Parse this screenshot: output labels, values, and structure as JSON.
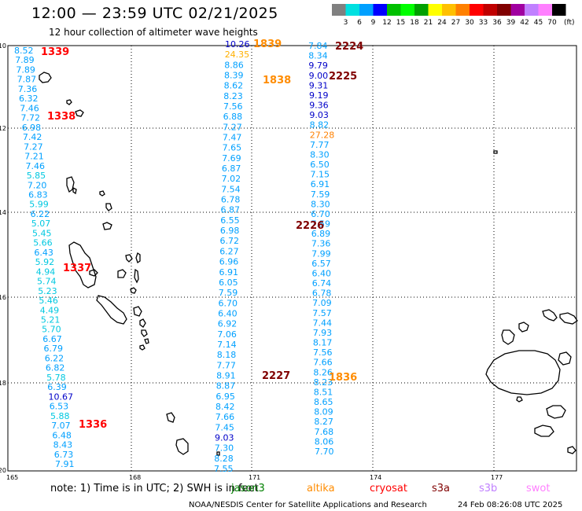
{
  "header": {
    "title": "12:00 — 23:59 UTC 02/21/2025",
    "subtitle": "12 hour collection of altimeter wave heights"
  },
  "colorbar": {
    "ticks": [
      "3",
      "6",
      "9",
      "12",
      "15",
      "18",
      "21",
      "24",
      "27",
      "30",
      "33",
      "36",
      "39",
      "42",
      "45",
      "70"
    ],
    "unit": "(ft)",
    "colors": [
      "#808080",
      "#00e0e0",
      "#00a0ff",
      "#0000ff",
      "#00c000",
      "#00ff00",
      "#00a000",
      "#ffff00",
      "#ffc000",
      "#ff8000",
      "#ff0000",
      "#c00000",
      "#800000",
      "#a000a0",
      "#c080ff",
      "#ff80ff",
      "#000000"
    ]
  },
  "axes": {
    "lat_labels": [
      "-10",
      "-12",
      "-14",
      "-16",
      "-18",
      "-20"
    ],
    "lon_labels": [
      "165",
      "168",
      "171",
      "174",
      "177"
    ]
  },
  "passes": [
    {
      "id": "1339",
      "color": "#ff0000"
    },
    {
      "id": "1338",
      "color": "#ff0000"
    },
    {
      "id": "1337",
      "color": "#ff0000"
    },
    {
      "id": "1336",
      "color": "#ff0000"
    },
    {
      "id": "1839",
      "color": "#ff8c00"
    },
    {
      "id": "1838",
      "color": "#ff8c00"
    },
    {
      "id": "1836",
      "color": "#ff8c00"
    },
    {
      "id": "2224",
      "color": "#800000"
    },
    {
      "id": "2225",
      "color": "#800000"
    },
    {
      "id": "2226",
      "color": "#800000"
    },
    {
      "id": "2227",
      "color": "#800000"
    }
  ],
  "tracks": {
    "west": [
      "8.52",
      "7.89",
      "7.89",
      "7.87",
      "7.36",
      "6.32",
      "7.46",
      "7.72",
      "6.98",
      "7.42",
      "7.27",
      "7.21",
      "7.46",
      "5.85",
      "7.20",
      "6.83",
      "5.99",
      "6.22",
      "5.07",
      "5.45",
      "5.66",
      "6.43",
      "5.92",
      "4.94",
      "5.74",
      "5.23",
      "5.46",
      "4.49",
      "5.21",
      "5.70",
      "6.67",
      "6.79",
      "6.22",
      "6.82",
      "5.78",
      "6.39",
      "10.67",
      "6.53",
      "5.88",
      "7.07",
      "6.48",
      "8.43",
      "6.73",
      "7.91"
    ],
    "middle_top": [
      "10.26",
      "24.35",
      "8.86",
      "8.39",
      "8.62",
      "8.23",
      "7.56",
      "6.88",
      "7.27",
      "7.47",
      "7.65",
      "7.69",
      "6.87",
      "7.02",
      "7.54",
      "6.78",
      "6.87",
      "6.55",
      "6.98",
      "6.72",
      "6.27",
      "6.96",
      "6.91",
      "6.05",
      "7.59",
      "6.70",
      "6.40",
      "6.92",
      "7.06",
      "7.14",
      "8.18",
      "7.77",
      "8.91",
      "8.87",
      "6.95",
      "8.42",
      "7.66",
      "7.45",
      "9.03",
      "7.30",
      "8.28",
      "7.55"
    ],
    "east": [
      "7.84",
      "8.34",
      "9.79",
      "9.00",
      "9.31",
      "9.19",
      "9.36",
      "9.03",
      "8.82",
      "27.28",
      "7.77",
      "8.30",
      "6.50",
      "7.15",
      "6.91",
      "7.59",
      "8.30",
      "6.70",
      "7.59",
      "6.89",
      "7.36",
      "7.99",
      "6.57",
      "6.40",
      "6.74",
      "6.78",
      "7.09",
      "7.57",
      "7.44",
      "7.93",
      "8.17",
      "7.56",
      "7.66",
      "8.26",
      "8.23",
      "8.51",
      "8.65",
      "8.09",
      "8.27",
      "7.68",
      "8.06",
      "7.70"
    ]
  },
  "footer": {
    "note": "note:  1) Time is in UTC;  2) SWH is in feet",
    "missions": [
      {
        "name": "jason3",
        "color": "#008000"
      },
      {
        "name": "altika",
        "color": "#ff8c00"
      },
      {
        "name": "cryosat",
        "color": "#ff0000"
      },
      {
        "name": "s3a",
        "color": "#800000"
      },
      {
        "name": "s3b",
        "color": "#c080ff"
      },
      {
        "name": "swot",
        "color": "#ff80ff"
      }
    ],
    "credit": "NOAA/NESDIS Center for Satellite Applications and Research",
    "timestamp": "24 Feb 08:26:08 UTC 2025"
  }
}
